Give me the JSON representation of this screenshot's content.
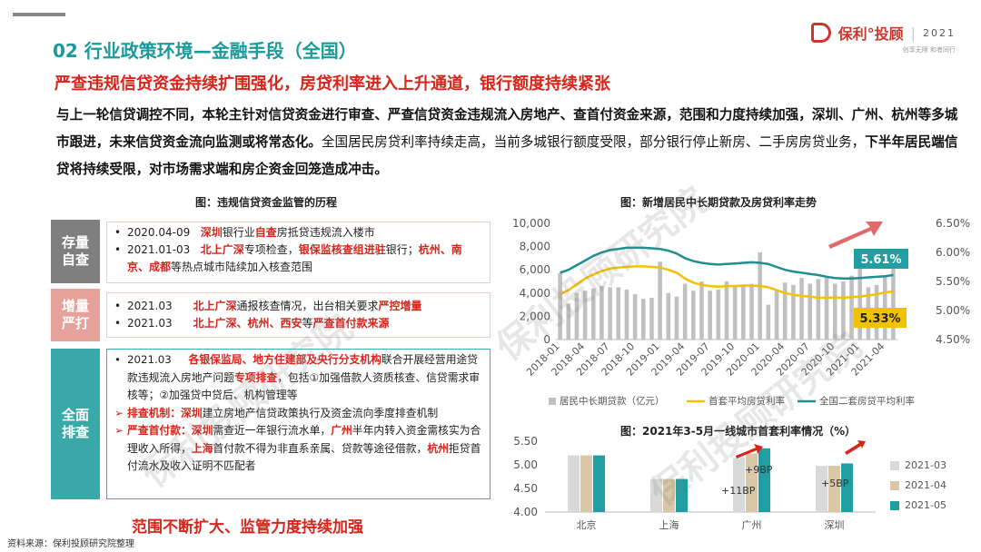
{
  "header": {
    "title": "02 行业政策环境—金融手段（全国）",
    "subtitle": "严查违规信贷资金持续扩围强化，房贷利率进入上升通道，银行额度持续紧张",
    "logo_name": "保利°投顾",
    "logo_year": "2021",
    "logo_tagline": "创享无限  和者同行"
  },
  "intro": {
    "p1": "与上一轮信贷调控不同，本轮主针对信贷资金进行审查、严查信贷资金违规流入房地产、查首付资金来源，范围和力度持续加强，深圳、广州、杭州等多城市跟进，",
    "p2": "未来信贷资金流向监测或将常态化。",
    "p3": "全国居民房贷利率持续走高，当前多城银行额度受限，部分银行停止新房、二手房房贷业务，",
    "p4": "下半年居民端信贷将持续受限，对市场需求端和房企资金回笼造成冲击。"
  },
  "timeline": {
    "fig_title": "图：违规信贷资金监管的历程",
    "tags": [
      {
        "line1": "存量",
        "line2": "自查",
        "color": "#7f7f7f"
      },
      {
        "line1": "增量",
        "line2": "严打",
        "color": "#e6a29a"
      },
      {
        "line1": "全面",
        "line2": "排查",
        "color": "#3aa8a8"
      }
    ],
    "box1": [
      {
        "date": "2020.04-09",
        "a": "深圳",
        "b": "银行业",
        "c": "自查",
        "d": "房抵贷违规流入楼市"
      },
      {
        "date": "2021.01-03",
        "a": "北上广深",
        "b": "专项检查，",
        "c": "银保监核查组进驻",
        "d": "银行；",
        "e": "杭州、南京、成都",
        "f": "等热点城市陆续加入核查范围"
      }
    ],
    "box2": [
      {
        "date": "2021.03",
        "a": "北上广深",
        "b": "通报核查情况，出台相关要求",
        "c": "严控增量"
      },
      {
        "date": "2021.03",
        "a": "北上广深、杭州、西安",
        "b": "等",
        "c": "严查首付款来源"
      }
    ],
    "box3": {
      "date": "2021.03",
      "a": "各银保监局、地方住建部及央行分支机构",
      "b": "联合开展经营用途贷款违规流入房地产问题",
      "c": "专项排查",
      "d": "，包括①加强借款人资质核查、信贷需求审核等；②加强贷中贷后、机构管理等",
      "mech_label": "排查机制：",
      "mech_city": "深圳",
      "mech_text": "建立房地产信贷政策执行及资金流向季度排查机制",
      "down_label": "严查首付款：",
      "down_c1": "深圳",
      "down_t1": "需查近一年银行流水单，",
      "down_c2": "广州",
      "down_t2": "半年内转入资金需核实为合理收入所得，",
      "down_c3": "上海",
      "down_t3": "首付款不得为非直系亲属、贷款等途径借款，",
      "down_c4": "杭州",
      "down_t4": "拒贷首付流水及收入证明不匹配者"
    },
    "conclusion": "范围不断扩大、监管力度持续加强"
  },
  "chart1_title": "图：新增居民中长期贷款及房贷利率走势",
  "chart2_title": "图：2021年3-5月一线城市首套利率情况（%）",
  "source": "资料来源：保利投顾研究院整理",
  "watermark": "保利投顾研究院",
  "chart_data": [
    {
      "type": "line",
      "title": "图：新增居民中长期贷款及房贷利率走势",
      "x": [
        "2018-01",
        "2018-02",
        "2018-03",
        "2018-04",
        "2018-05",
        "2018-06",
        "2018-07",
        "2018-08",
        "2018-09",
        "2018-10",
        "2018-11",
        "2018-12",
        "2019-01",
        "2019-02",
        "2019-03",
        "2019-04",
        "2019-05",
        "2019-06",
        "2019-07",
        "2019-08",
        "2019-09",
        "2019-10",
        "2019-11",
        "2019-12",
        "2020-01",
        "2020-02",
        "2020-03",
        "2020-04",
        "2020-05",
        "2020-06",
        "2020-07",
        "2020-08",
        "2020-09",
        "2020-10",
        "2020-11",
        "2020-12",
        "2021-01",
        "2021-02",
        "2021-03",
        "2021-04",
        "2021-05"
      ],
      "x_ticks": [
        "2018-01",
        "2018-04",
        "2018-07",
        "2018-10",
        "2019-01",
        "2019-04",
        "2019-07",
        "2019-10",
        "2020-01",
        "2020-04",
        "2020-07",
        "2020-10",
        "2021-01",
        "2021-04"
      ],
      "ylim_left": [
        0,
        10000
      ],
      "yticks_left": [
        "0",
        "2,000",
        "4,000",
        "6,000",
        "8,000",
        "10,000"
      ],
      "ylim_right": [
        4.5,
        6.5
      ],
      "yticks_right": [
        "4.50%",
        "5.00%",
        "5.50%",
        "6.00%",
        "6.50%"
      ],
      "series": [
        {
          "name": "居民中长期贷款（亿元）",
          "kind": "bar",
          "axis": "left",
          "color": "#c0c0c0",
          "values": [
            5700,
            3100,
            4000,
            4200,
            4400,
            4600,
            4500,
            4500,
            4300,
            3900,
            3500,
            3600,
            6700,
            4000,
            3700,
            4800,
            4200,
            5000,
            4200,
            4300,
            5000,
            4700,
            4600,
            4800,
            7500,
            3000,
            4300,
            4900,
            4700,
            5300,
            4800,
            5200,
            5300,
            4800,
            5000,
            5500,
            7200,
            4500,
            4700,
            5400,
            6500
          ]
        },
        {
          "name": "首套平均房贷利率",
          "kind": "line",
          "axis": "right",
          "color": "#f2c200",
          "values": [
            5.28,
            5.35,
            5.45,
            5.55,
            5.62,
            5.68,
            5.72,
            5.74,
            5.75,
            5.76,
            5.76,
            5.75,
            5.74,
            5.7,
            5.65,
            5.55,
            5.48,
            5.44,
            5.42,
            5.41,
            5.42,
            5.42,
            5.43,
            5.43,
            5.42,
            5.4,
            5.35,
            5.3,
            5.27,
            5.25,
            5.24,
            5.22,
            5.22,
            5.22,
            5.22,
            5.23,
            5.24,
            5.26,
            5.28,
            5.31,
            5.33
          ]
        },
        {
          "name": "全国二套房贷平均利率",
          "kind": "line",
          "axis": "right",
          "color": "#1f8f92",
          "values": [
            5.65,
            5.7,
            5.78,
            5.86,
            5.94,
            6.0,
            6.04,
            6.06,
            6.08,
            6.08,
            6.08,
            6.07,
            6.06,
            6.03,
            5.98,
            5.9,
            5.85,
            5.82,
            5.8,
            5.79,
            5.8,
            5.81,
            5.82,
            5.83,
            5.82,
            5.8,
            5.75,
            5.7,
            5.67,
            5.65,
            5.63,
            5.61,
            5.58,
            5.56,
            5.55,
            5.55,
            5.56,
            5.57,
            5.58,
            5.59,
            5.61
          ]
        }
      ],
      "annotations": [
        "5.61%",
        "5.33%"
      ]
    },
    {
      "type": "bar",
      "title": "图：2021年3-5月一线城市首套利率情况（%）",
      "categories": [
        "北京",
        "上海",
        "广州",
        "深圳"
      ],
      "ylim": [
        4.0,
        5.5
      ],
      "yticks": [
        "4.00",
        "4.50",
        "5.00",
        "5.50"
      ],
      "series": [
        {
          "name": "2021-03",
          "color": "#d9d9d9",
          "values": [
            5.2,
            4.7,
            5.15,
            4.98
          ]
        },
        {
          "name": "2021-04",
          "color": "#d9c7a7",
          "values": [
            5.2,
            4.7,
            5.24,
            4.98
          ]
        },
        {
          "name": "2021-05",
          "color": "#1f9fa1",
          "values": [
            5.2,
            4.7,
            5.35,
            5.03
          ]
        }
      ],
      "annotations": [
        "+9BP",
        "+11BP",
        "+5BP"
      ]
    }
  ]
}
